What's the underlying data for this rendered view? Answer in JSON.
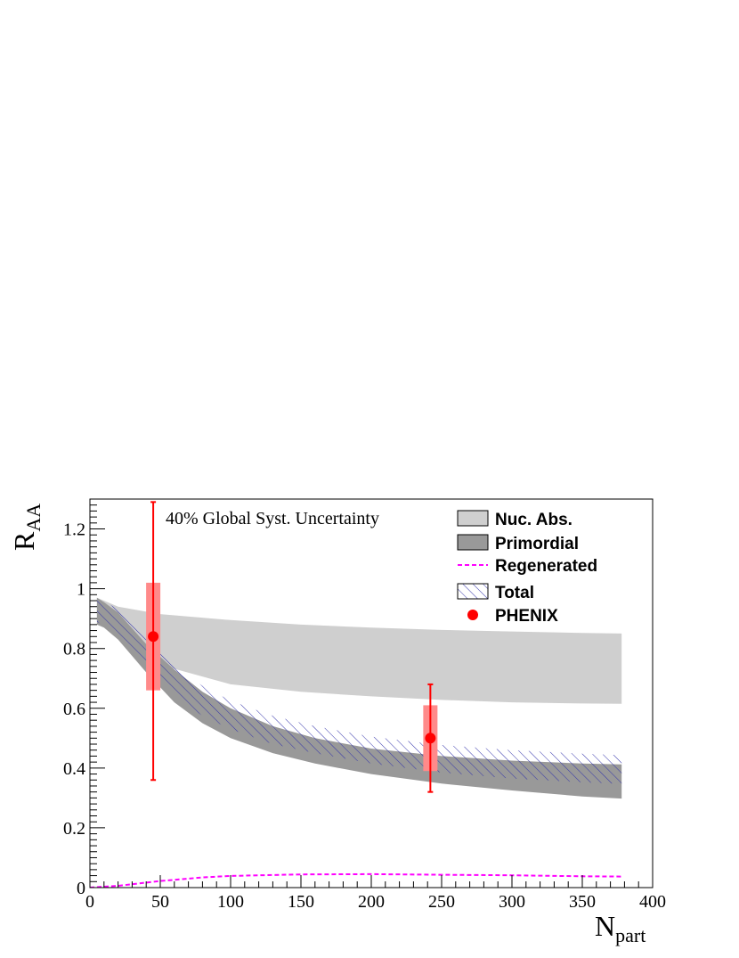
{
  "chart_data": {
    "type": "area",
    "title": "",
    "annotation": "40% Global Syst. Uncertainty",
    "xlabel": "N",
    "xlabel_sub": "part",
    "ylabel": "R",
    "ylabel_sub": "AA",
    "xlim": [
      0,
      400
    ],
    "ylim": [
      0,
      1.3
    ],
    "xticks": [
      0,
      50,
      100,
      150,
      200,
      250,
      300,
      350,
      400
    ],
    "yticks": [
      0,
      0.2,
      0.4,
      0.6,
      0.8,
      1,
      1.2
    ],
    "xtick_labels": [
      "0",
      "50",
      "100",
      "150",
      "200",
      "250",
      "300",
      "350",
      "400"
    ],
    "ytick_labels": [
      "0",
      "0.2",
      "0.4",
      "0.6",
      "0.8",
      "1",
      "1.2"
    ],
    "legend_position": "top-right",
    "series": [
      {
        "name": "Nuc. Abs.",
        "kind": "band",
        "color": "#cfcfcf",
        "x": [
          5,
          20,
          50,
          100,
          150,
          200,
          250,
          300,
          350,
          378
        ],
        "upper": [
          0.97,
          0.94,
          0.915,
          0.895,
          0.88,
          0.87,
          0.862,
          0.857,
          0.852,
          0.85
        ],
        "lower": [
          0.9,
          0.84,
          0.745,
          0.68,
          0.655,
          0.64,
          0.628,
          0.62,
          0.616,
          0.615
        ]
      },
      {
        "name": "Primordial",
        "kind": "band",
        "color": "#999999",
        "x": [
          5,
          10,
          20,
          40,
          60,
          80,
          100,
          130,
          160,
          200,
          250,
          300,
          350,
          378
        ],
        "upper": [
          0.97,
          0.955,
          0.92,
          0.815,
          0.73,
          0.655,
          0.6,
          0.54,
          0.5,
          0.465,
          0.44,
          0.425,
          0.415,
          0.412
        ],
        "lower": [
          0.88,
          0.87,
          0.83,
          0.72,
          0.62,
          0.55,
          0.5,
          0.45,
          0.415,
          0.38,
          0.348,
          0.325,
          0.305,
          0.298
        ]
      },
      {
        "name": "Regenerated",
        "kind": "line",
        "color": "#ff00ff",
        "dashed": true,
        "x": [
          0,
          20,
          50,
          80,
          100,
          150,
          200,
          250,
          300,
          350,
          378
        ],
        "y": [
          0.0,
          0.006,
          0.022,
          0.034,
          0.039,
          0.044,
          0.045,
          0.043,
          0.041,
          0.038,
          0.037
        ]
      },
      {
        "name": "Total",
        "kind": "hatched-band",
        "color": "#3333aa",
        "x": [
          5,
          10,
          20,
          40,
          60,
          80,
          100,
          130,
          160,
          200,
          250,
          300,
          350,
          378
        ],
        "upper": [
          0.97,
          0.96,
          0.93,
          0.83,
          0.74,
          0.675,
          0.625,
          0.575,
          0.54,
          0.505,
          0.477,
          0.46,
          0.448,
          0.443
        ],
        "lower": [
          0.89,
          0.875,
          0.84,
          0.73,
          0.64,
          0.575,
          0.53,
          0.48,
          0.45,
          0.415,
          0.385,
          0.365,
          0.352,
          0.347
        ]
      },
      {
        "name": "PHENIX",
        "kind": "points",
        "color": "#ff0000",
        "syst_color": "#ff8a8a",
        "points": [
          {
            "x": 45,
            "y": 0.84,
            "stat_low": 0.36,
            "stat_high": 1.29,
            "syst_low": 0.66,
            "syst_high": 1.02
          },
          {
            "x": 242,
            "y": 0.5,
            "stat_low": 0.32,
            "stat_high": 0.68,
            "syst_low": 0.39,
            "syst_high": 0.61
          }
        ]
      }
    ]
  }
}
